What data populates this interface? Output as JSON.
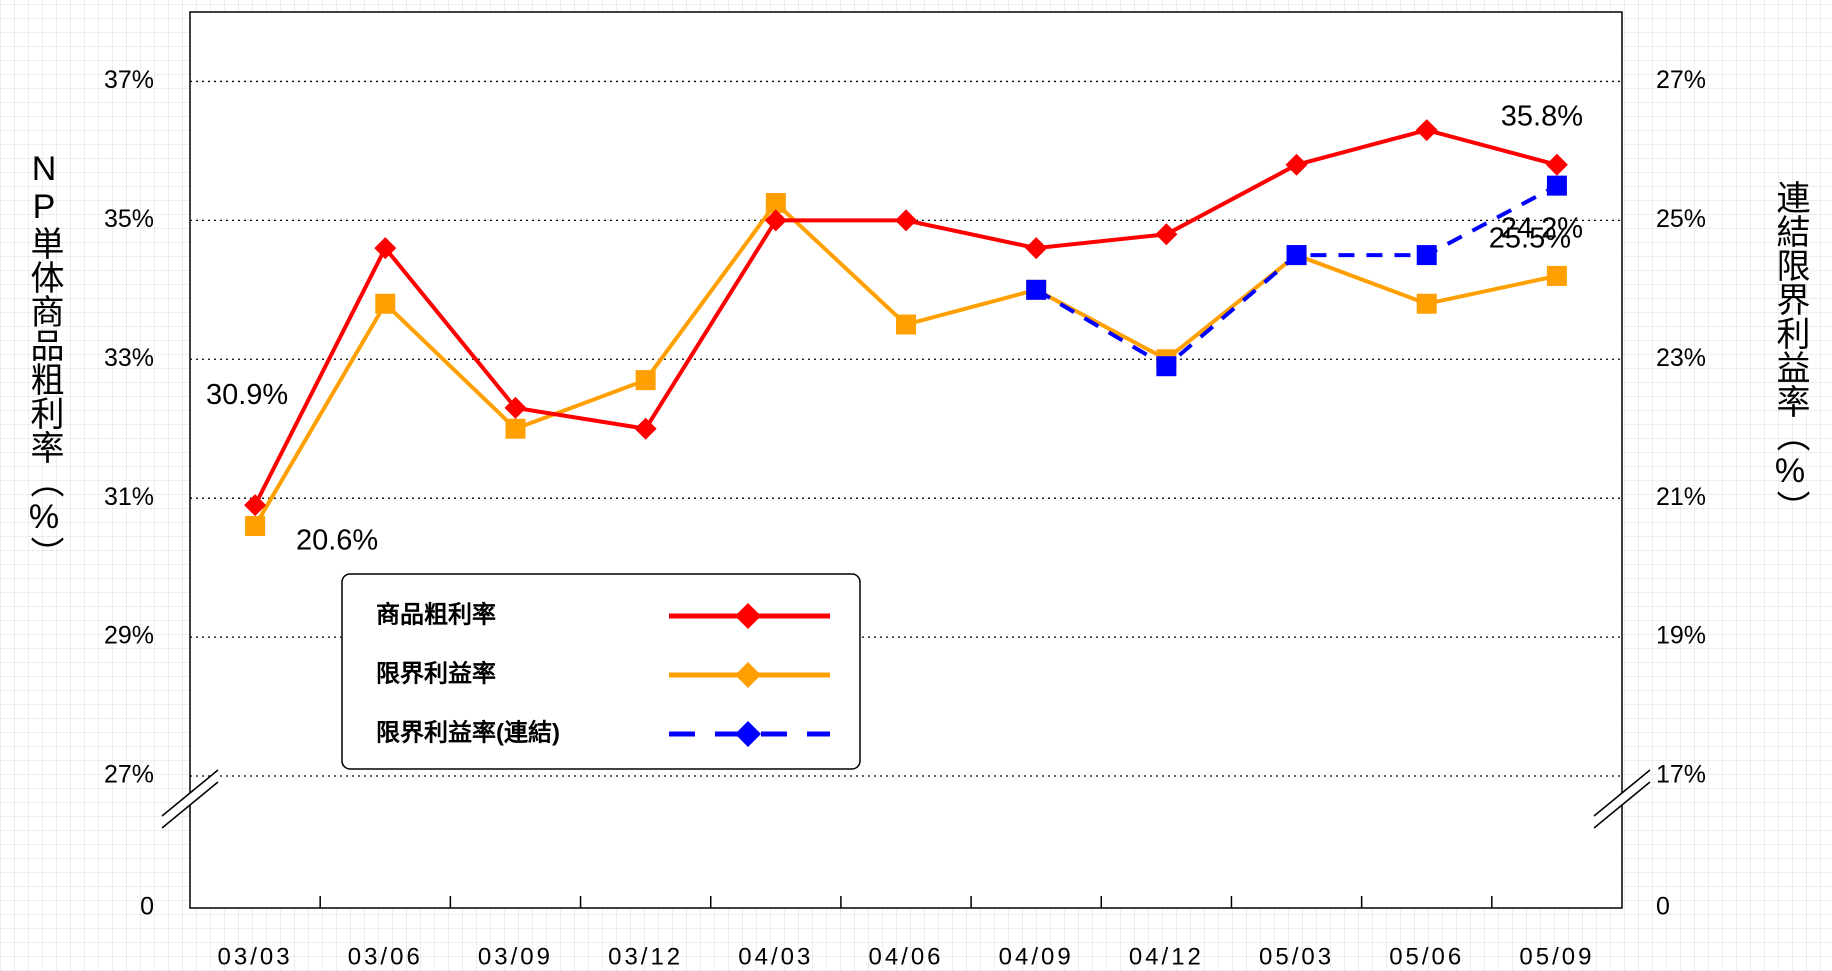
{
  "chart_data": {
    "type": "line",
    "y_label": "NP単体商品粗利率（%）",
    "y2_label": "連結限界利益率（%）",
    "categories": [
      "03/03",
      "03/06",
      "03/09",
      "03/12",
      "04/03",
      "04/06",
      "04/09",
      "04/12",
      "05/03",
      "05/06",
      "05/09"
    ],
    "series": [
      {
        "name": "商品粗利率",
        "color": "#ff0000",
        "marker": "diamond",
        "line_style": "solid",
        "axis": "y",
        "values": [
          30.9,
          34.6,
          32.3,
          32.0,
          35.0,
          35.0,
          34.6,
          34.8,
          35.8,
          36.3,
          35.8
        ],
        "value_labels": [
          "30.9%",
          null,
          null,
          null,
          null,
          null,
          null,
          null,
          null,
          null,
          "35.8%"
        ]
      },
      {
        "name": "限界利益率",
        "color": "#ffa000",
        "marker": "square",
        "line_style": "solid",
        "axis": "y2",
        "values": [
          20.6,
          23.8,
          22.0,
          22.7,
          25.25,
          23.5,
          24.0,
          23.0,
          24.5,
          23.8,
          24.2
        ],
        "value_labels": [
          "20.6%",
          null,
          null,
          null,
          null,
          null,
          null,
          null,
          null,
          null,
          "24.2%"
        ]
      },
      {
        "name": "限界利益率(連結)",
        "color": "#0000ff",
        "marker": "square",
        "line_style": "dashed",
        "axis": "y2",
        "values": [
          null,
          null,
          null,
          null,
          null,
          null,
          24.0,
          22.9,
          24.5,
          24.5,
          25.5
        ],
        "value_labels": [
          null,
          null,
          null,
          null,
          null,
          null,
          null,
          null,
          null,
          null,
          "25.5%"
        ]
      }
    ],
    "ylim": [
      27,
      38
    ],
    "yticks": [
      0,
      27,
      29,
      31,
      33,
      35,
      37
    ],
    "y2lim": [
      17,
      28
    ],
    "y2ticks": [
      0,
      17,
      19,
      21,
      23,
      25,
      27
    ],
    "tick_suffix_labels": {
      "yticks": [
        {
          "value": 0,
          "label": "0"
        },
        {
          "value": 27,
          "label": "27%"
        },
        {
          "value": 29,
          "label": "29%"
        },
        {
          "value": 31,
          "label": "31%"
        },
        {
          "value": 33,
          "label": "33%"
        },
        {
          "value": 35,
          "label": "35%"
        },
        {
          "value": 37,
          "label": "37%"
        }
      ],
      "y2ticks": [
        {
          "value": 0,
          "label": "0"
        },
        {
          "value": 17,
          "label": "17%"
        },
        {
          "value": 19,
          "label": "19%"
        },
        {
          "value": 21,
          "label": "21%"
        },
        {
          "value": 23,
          "label": "23%"
        },
        {
          "value": 25,
          "label": "25%"
        },
        {
          "value": 27,
          "label": "27%"
        }
      ]
    },
    "axis_break": true,
    "grid": true,
    "legend": "lower-left"
  }
}
